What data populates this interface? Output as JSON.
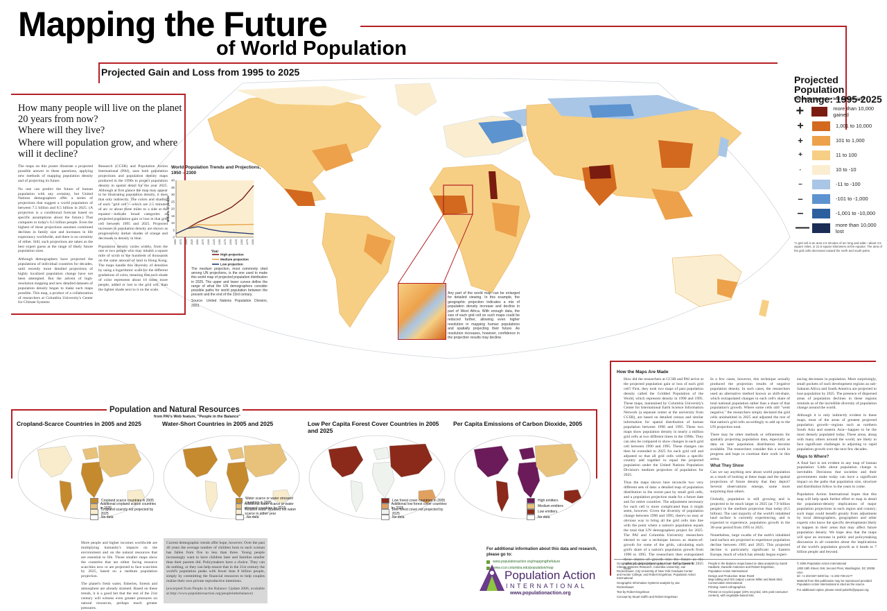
{
  "header": {
    "title_line1": "Mapping the Future",
    "title_line2": "of World Population",
    "subtitle": "Projected Gain and Loss from 1995 to 2025"
  },
  "intro": {
    "q1": "How many people will live on the planet 20 years from now?",
    "q2": "Where will they live?",
    "q3": "Where will population grow, and where will it decline?",
    "col1_p1": "The maps on this poster illustrate a projected possible answer to these questions, applying new methods of mapping population density and of projecting its future.",
    "col1_p2": "No one can predict the future of human population with any certainty, but United Nations demographers offer a series of projections that suggest a world population of between 7.5 billion and 8.5 billion in 2025. (A projection is a conditional forecast based on specific assumptions about the future.) That compares to today's 6.5 billion people. Even the highest of these projections assumes continued declines in family size and increases in life expectancy worldwide, and there is no certainty of either. Still, such projections are taken as the best expert guess at the range of likely future population sizes.",
    "col1_p3": "Although demographers have projected the populations of individual countries for decades, until recently more detailed projections of highly localized population change have not been attempted. But the advent of high-resolution mapping and new detailed datasets of population density began to make such maps possible. This map, a product of a collaboration of researchers at Columbia University's Center for Climate Systems",
    "col2_p1": "Research (CCSR) and Population Action International (PAI), uses both population projections and population density maps produced in the 1990s to project population density in spatial detail for the year 2025. Although at first glance the map may appear to be illustrating population density, it does that only indirectly. The colors and shading of each \"grid cell\"—which are 2.5 minutes of arc or about three miles to a side at the equator—indicate broad categories of projected population gain or loss in that grid cell between 1995 and 2025. Projected increases in population density are shown as progressively darker shades of orange and decreases in density in blue.",
    "col2_p2": "Population density varies widely, from the one or two people who may inhabit a square mile of scrub to the hundreds of thousands on the same amount of land in Hong Kong. The maps handle this diversity of densities by using a logarithmic scale for the different gradations of color, meaning that each shade of color represents about 10 times more people, added or lost to the grid cell, than the lighter shade next to it on the scale."
  },
  "inset_chart": {
    "title": "World Population Trends and Projections, 1950 – 2300",
    "ylabel": "Billions of people",
    "xlabel": "Year",
    "legend": [
      "High projection",
      "Medium projection",
      "Low projection"
    ],
    "caption": "The medium projection, most commonly cited among UN projections, is the one used to make this world map of projected population distribution in 2025. The upper and lower curves define the range of what the UN demographers consider possible paths for world population between the present and the end of the 23rd century.",
    "source": "Source: United Nations Population Division, 2003."
  },
  "chart_data": {
    "type": "line",
    "title": "World Population Trends and Projections, 1950 – 2300",
    "xlabel": "Year",
    "ylabel": "Billions of people",
    "x": [
      1950,
      2000,
      2050,
      2100,
      2150,
      2200,
      2250,
      2300
    ],
    "ylim": [
      0,
      40
    ],
    "yticks": [
      0,
      5,
      10,
      15,
      20,
      25,
      30,
      35,
      40
    ],
    "xtick_labels": [
      "1950",
      "1975",
      "2000",
      "2025",
      "2050",
      "2075",
      "2100",
      "2125",
      "2150",
      "2175",
      "2200",
      "2225",
      "2250",
      "2275",
      "2300"
    ],
    "series": [
      {
        "name": "High projection",
        "color": "#7a1c1c",
        "values": [
          2.5,
          6.1,
          10.6,
          14.0,
          17.0,
          21.0,
          27.0,
          36.4
        ]
      },
      {
        "name": "Medium projection",
        "color": "#e8a54a",
        "values": [
          2.5,
          6.1,
          8.9,
          8.5,
          8.6,
          8.8,
          8.9,
          9.0
        ]
      },
      {
        "name": "Low projection",
        "color": "#2a3f78",
        "values": [
          2.5,
          6.1,
          7.4,
          5.5,
          4.2,
          3.4,
          2.9,
          2.3
        ]
      }
    ],
    "grid": false,
    "legend_position": "bottom-right"
  },
  "zoom_note": "Any part of the world map can be enlarged for detailed viewing. In this example, the geographic projection indicates a mix of population density increase and decline in part of West Africa. With enough data, the size of each grid cell on such maps could be reduced further, allowing even higher resolution in mapping human populations and spatially projecting their future. As resolution increases, however, confidence in the projection results may decline.",
  "legend": {
    "title": "Projected Population Change: 1995-2025",
    "subtitle": "Population gained or lost per grid cell*",
    "items": [
      {
        "sym": "+",
        "label": "more than 10,000 gained",
        "color": "#7a1c10"
      },
      {
        "sym": "+",
        "label": "1,001 to 10,000",
        "color": "#d2691e"
      },
      {
        "sym": "+",
        "label": "101 to 1,000",
        "color": "#eda14a"
      },
      {
        "sym": "+",
        "label": "11 to 100",
        "color": "#f6cf84"
      },
      {
        "sym": "·",
        "label": "10 to -10",
        "color": "#fbeed0"
      },
      {
        "sym": "–",
        "label": "-11 to -100",
        "color": "#a9c6e6"
      },
      {
        "sym": "–",
        "label": "-101 to -1,000",
        "color": "#5d93cf"
      },
      {
        "sym": "–",
        "label": "-1,001 to -10,000",
        "color": "#2d5f9e"
      },
      {
        "sym": "—",
        "label": "more than 10,000 lost",
        "color": "#1b2d55"
      }
    ],
    "footnote": "*A grid cell is an area 2.5 minutes of arc long and wide—about 4.5 square miles, or 21.6 square kilometers at the equator. The area of the grid cells decreases toward the north and south poles."
  },
  "resources": {
    "title": "Population and Natural Resources",
    "subtitle": "from PAI's Web feature, \"People in the Balance\"",
    "maps": [
      {
        "title": "Cropland-Scarce Countries in 2005 and 2025",
        "legend": [
          {
            "label": "Cropland scarce countries in 2005",
            "color": "#c58a2e"
          },
          {
            "label": "Additional cropland scarce countries in 2025",
            "color": "#e8c27a"
          },
          {
            "label": "Cropland scarcity not projected by 2025",
            "color": "#f8eccc"
          },
          {
            "label": "No data",
            "color": "#ffffff"
          }
        ]
      },
      {
        "title": "Water-Short Countries in 2005 and 2025",
        "legend": [
          {
            "label": "Water scarce or water stressed countries in 2005",
            "color": "#c58a2e"
          },
          {
            "label": "Additional water scarce or water stressed countries by 2025",
            "color": "#e8c27a"
          },
          {
            "label": "Relative water stressed not water scarce in either year",
            "color": "#f8eccc"
          },
          {
            "label": "No data",
            "color": "#ffffff"
          }
        ]
      },
      {
        "title": "Low Per Capita Forest Cover Countries in 2005 and 2025",
        "legend": [
          {
            "label": "Low forest cover countries in 2005",
            "color": "#8b2a1a"
          },
          {
            "label": "Additional low forest cover countries by 2025",
            "color": "#e0a060"
          },
          {
            "label": "Low forest cover not projected by 2025",
            "color": "#eef3ee"
          },
          {
            "label": "No data",
            "color": "#ffffff"
          }
        ]
      },
      {
        "title": "Per Capita Emissions of Carbon Dioxide, 2005",
        "legend": [
          {
            "label": "High emitters",
            "color": "#6b1a5a"
          },
          {
            "label": "Medium emitters",
            "color": "#e8c27a"
          },
          {
            "label": "Low emitters",
            "color": "#8b2a1a"
          },
          {
            "label": "No data",
            "color": "#ffffff"
          }
        ]
      }
    ],
    "col1": "More people and higher incomes worldwide are multiplying humanity's impacts on the environment and on the natural resources that are essential to life. Those smaller maps show the countries that are either facing resource scarcities now or are projected to face scarcities by 2025, based on a medium population projection.",
    "col1b": "The planet's fresh water, fisheries, forests and atmosphere are already strained. Based on these trends, it is a good bet that the rest of the 21st century will witness even greater pressures on natural resources, perhaps much greater pressures.",
    "col2": "Current demographic trends offer hope, however. Over the past 40 years the average number of children born to each woman has fallen from five to less than three. Young people increasingly want to have children later and families smaller than their parents did. Policymakers have a choice. They can do nothing, or they can help ensure that in the 21st century the world's population peaks with fewer than 8 billion people, simply by committing the financial resources to help couples realize their own private reproductive intentions.",
    "excerpt": "(excerpted from People in the Balance: Update 2006, available at http://www.populationaction.org/peopleinthebalance)",
    "more_info_title": "For additional information about this data and research, please go to:",
    "links": [
      "www.populationaction.org/mappingthefuture",
      "www.ccsr.columbia.edu/population/map"
    ]
  },
  "how": {
    "title": "How the Maps Are Made",
    "col1": "How did the researchers at CCSR and PAI arrive at the projected population gain or loss of each grid cell? First, they took two maps of past population density called the Gridded Population of the World, which represent density in 1990 and 1995. These maps, maintained by Columbia University's Center for International Earth Science Information Network (a separate center at the university from CCSR), are based on detailed census and similar information for spatial distribution of human population between 1990 and 1995. These two maps show population density in nearly a million grid cells at two different times in the 1990s. They can also be compared to show changes in each grid cell between 1990 and 1995. These changes can then be extended to 2025 for each grid cell and adjusted so that all grid cells within a specific country add together to equal the projected population under the United Nations Population Division's medium projection of population for 2025.",
    "col1b": "Thus the maps shown here reconcile two very different sets of data: a detailed map of population distribution in the recent past by small grid cells, and a population projection made for a future date and for entire countries. The adjustment necessary for each cell is more complicated than it might seem, however. Given the diversity of population change between 1990 and 1995, there's no easy or obvious way to bring all the grid cells into line with the point where a nation's population equals the total that UN demographers project for 2025. The PAI and Columbia University researchers elected to use a technique known as shares-of-growth for some of the grids, calculating each grid's share of a nation's population growth from 1990 to 1995. The researchers then extrapolated these shares of growth into the future as the national population grew to its projected 2025 total.",
    "col2": "In a few cases, however, this technique actually produced the projection results of negative population density. In such cases, the researchers used an alternative method known as shift-share, which extrapolated changes in each cell's share of total national population rather than a share of that population's growth. Where some cells still \"went negative,\" the researchers simply declared the grid cells uninhabited in 2025 and adjusted the rest of that nation's grid cells accordingly to add up to the UN projection total.",
    "col2b": "There may be other methods or refinements for spatially projecting population data, especially as data on later population distribution become available. The researchers consider this a work in progress and hope to continue their work in this arena.",
    "what_title": "What They Show",
    "col2c": "Can we say anything new about world population as a result of looking at these maps and the spatial projections of future density that they depict? Several observations emerge, some more surprising than others.",
    "col2d": "Globally, population is still growing and is projected to be much larger in 2025 (at 7.9 billion people) in the medium projection than today (6.5 billion). The vast majority of the world's inhabited land surface is currently experiencing, and is expected to experience, population growth in the 30-year period from 1995 to 2025.",
    "col2e": "Nonetheless, large swaths of the earth's inhabited land surface are projected to experience population decline between 1995 and 2025. This projected decline is particularly significant in Eastern Europe, much of which has already begun experi-",
    "col3": "encing decreases in population. More surprisingly, small pockets of such development regions as sub-Saharan Africa and South America are projected to lose population by 2025. The presence of dispersed areas of population declines in these regions reminds us of the incredible diversity of population change around the world.",
    "col3b": "Although it is only indirectly evident in these maps, most of the areas of greatest projected population growth—regions such as northern South Asia and eastern Asia—happen to be the most densely populated today. These areas, along with many others around the world, are likely to face significant challenges in adjusting to rapid population growth over the next few decades.",
    "where_title": "Maps to Where?",
    "col3c": "A final fact is not evident in any map of human population: Little about population change is inevitable. Decisions that societies and their governments make today can have a significant impact on the paths that population size, structure and distribution follow in the years to come.",
    "col3d": "Population Action International hopes that this map will help spark further effort to map in detail the population-density implications of major population projections in each region and country; such maps could benefit greatly from adjustment by local demographers, geographers and other experts who know the specific developments likely to happen in their areas that may affect future population density. We hope also that the maps will spur an increase in public and policymaking discussion in all countries about the implications of the world's population growth as it heads to 7 billion people and beyond."
  },
  "credits": {
    "c1": "Geographic population projection by Stuart Gaffin, Center for Climate Systems Research, Columbia University; Jae Rockenbauer, City University of New York Graduate Center and Hunter College; and Robert Engelman, Population Action International",
    "c1b": "Geographic Information Systems analysis by Jae Rockenbauer",
    "c1c": "Text by Robert Engelman",
    "c1d": "Concept by Stuart Gaffin and Robert Engelman",
    "c2": "People in the Balance maps based on data analysis by Sarah Haddock, Danielle Anderson and Robert Engelman, Population Action International",
    "c2b": "Design and Production: Brian Rivett",
    "c2c": "Map editing and GIS output: Leanne Miller and Mark Steil, Conservation International",
    "c2d": "Printing: Harris Lithographics",
    "c2e": "Printed on recycled paper (20% recycled, 15% post-consumer content), with vegetable-based inks.",
    "c3": "© 2006 Population Action International",
    "c3b": "1300 19th Street, NW, Second Floor, Washington, DC 20036 USA",
    "c3c": "tel: +1-202-557-3400   fax: +1-202-728-4177",
    "c3d": "Material from this publication may be reproduced provided Population Action International is cited as the source.",
    "c3e": "For additional copies, please email pubinfo@popact.org"
  },
  "logo": {
    "name": "Population Action",
    "name2": "INTERNATIONAL",
    "url": "www.populationaction.org"
  }
}
